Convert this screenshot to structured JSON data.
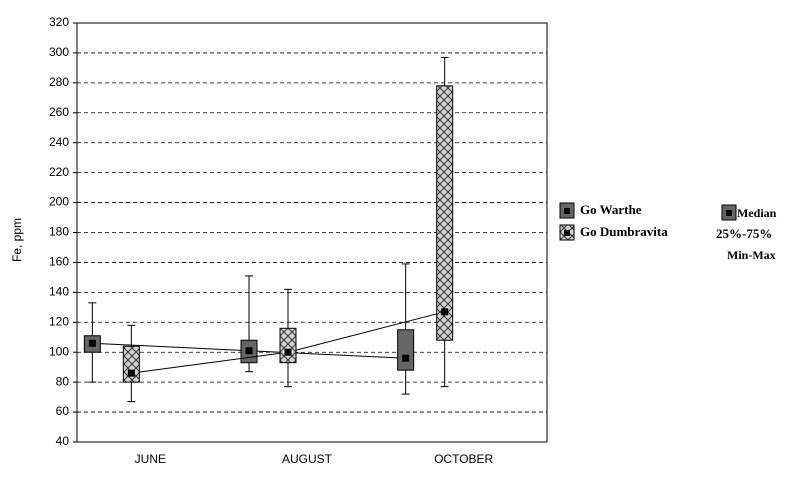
{
  "chart_data": {
    "type": "box",
    "y_label": "Fe, ppm",
    "categories": [
      "JUNE",
      "AUGUST",
      "OCTOBER"
    ],
    "series": [
      {
        "name": "Go Warthe",
        "color": "#666666",
        "min": [
          80,
          87,
          72
        ],
        "q1": [
          100,
          93,
          88
        ],
        "median": [
          106,
          101,
          96
        ],
        "q3": [
          111,
          108,
          115
        ],
        "max": [
          133,
          151,
          159
        ]
      },
      {
        "name": "Go Dumbravita",
        "color": "#cccccc",
        "pattern": "crosshatch",
        "min": [
          67,
          77,
          77
        ],
        "q1": [
          80,
          93,
          108
        ],
        "median": [
          86,
          100,
          127
        ],
        "q3": [
          104,
          116,
          278
        ],
        "max": [
          118,
          142,
          297
        ]
      }
    ],
    "ylim": [
      40,
      320
    ],
    "yticks": [
      40,
      60,
      80,
      100,
      120,
      140,
      160,
      180,
      200,
      220,
      240,
      260,
      280,
      300,
      320
    ],
    "grid": true,
    "box_legend": {
      "median": "Median",
      "box": "25%-75%",
      "whisker": "Min-Max"
    }
  }
}
